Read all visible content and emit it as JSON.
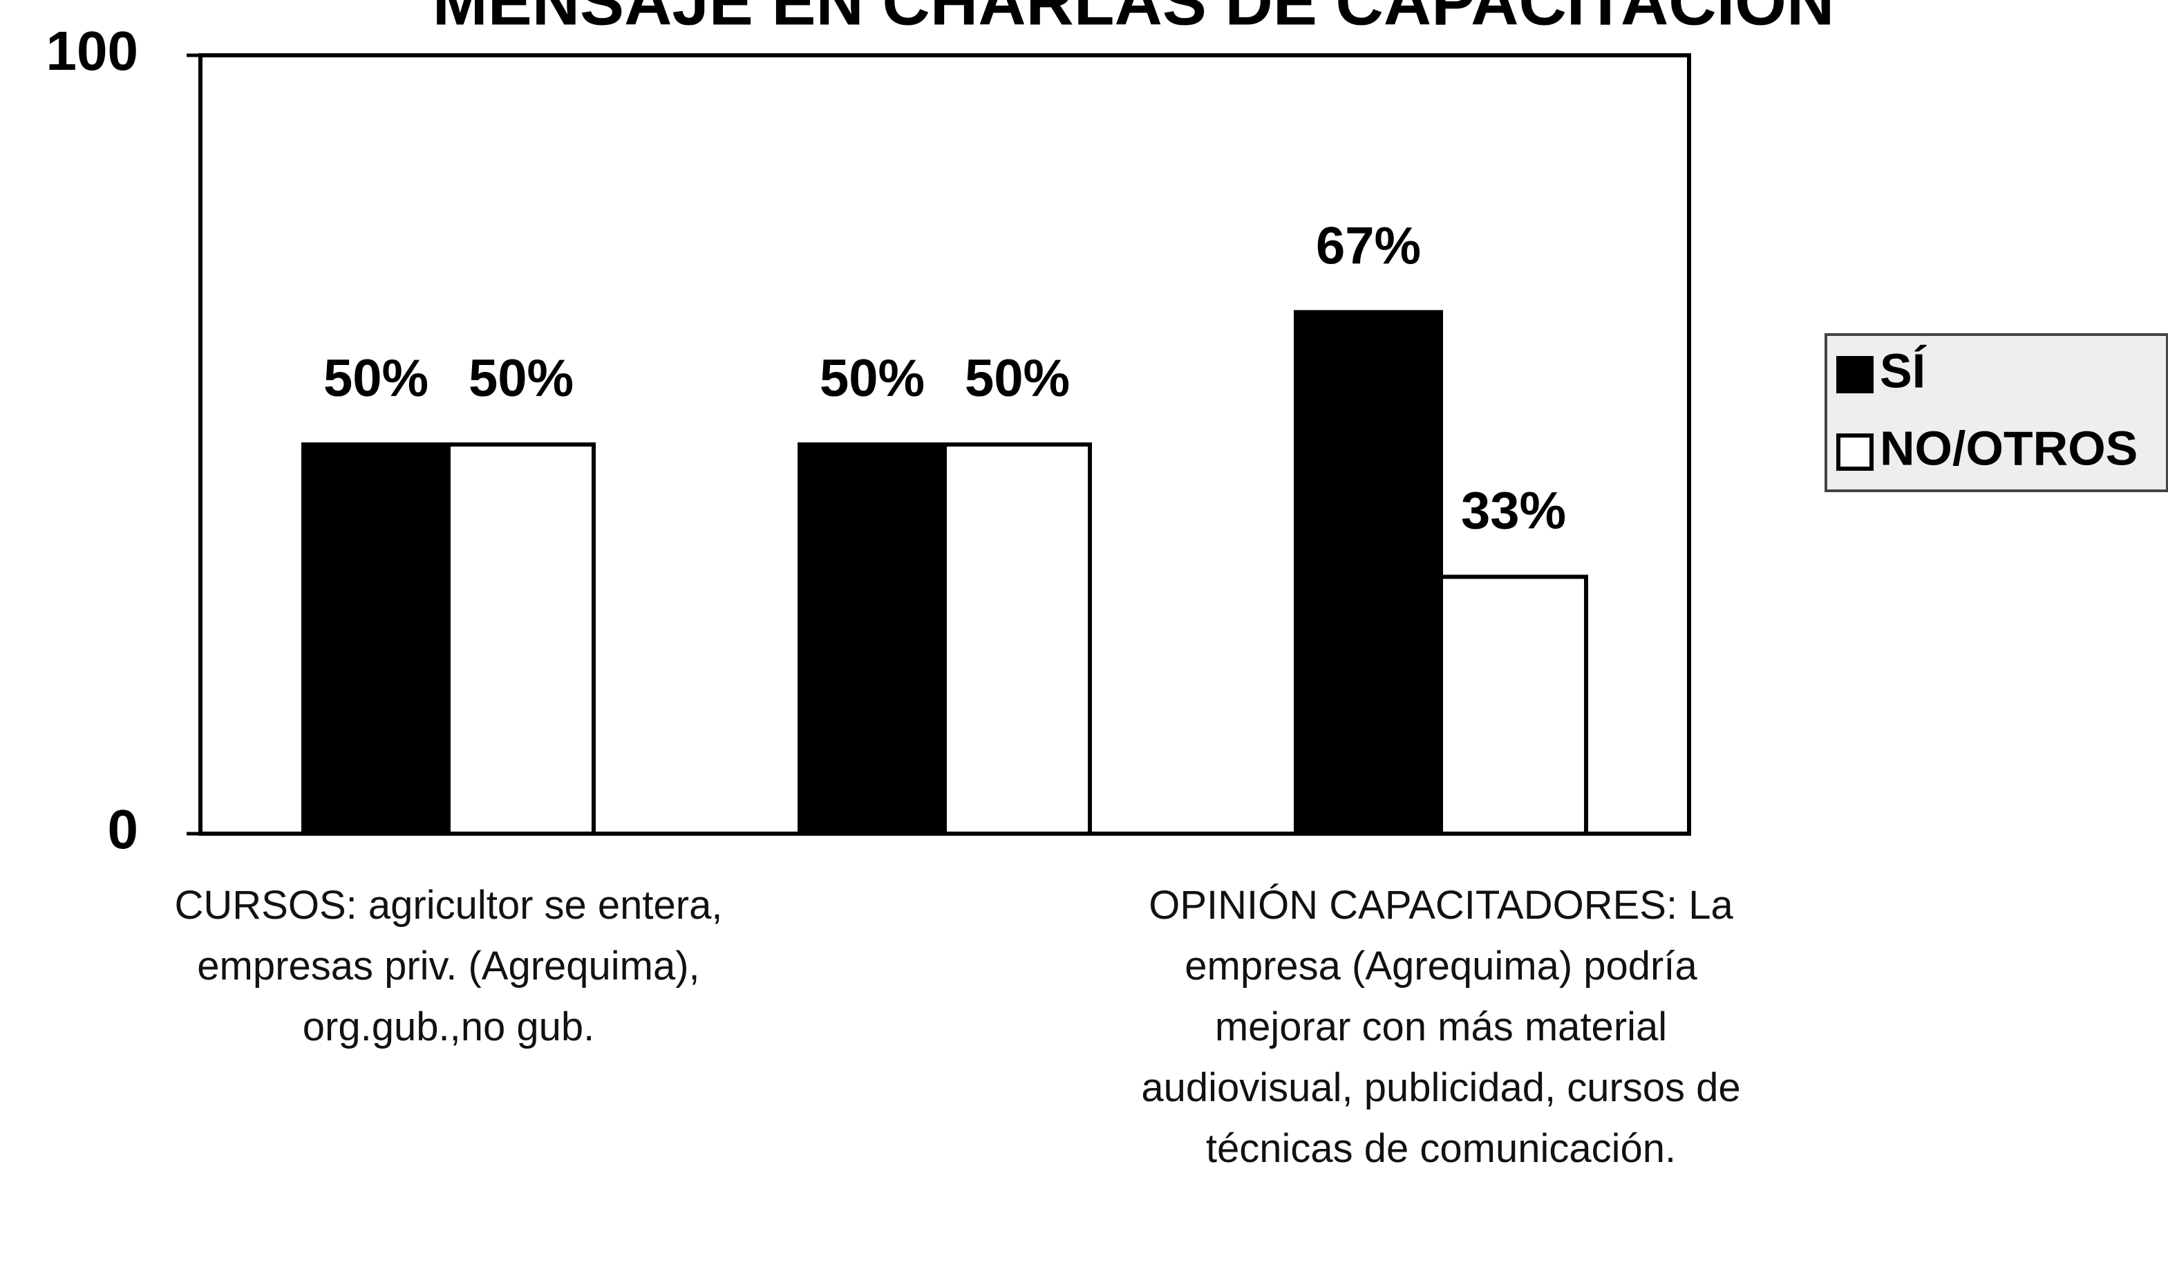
{
  "chart_data": {
    "type": "bar",
    "title": "MENSAJE EN CHARLAS DE CAPACITACIÓN",
    "categories": [
      "CURSOS: agricultor se entera, empresas priv. (Agrequima), org.gub.,no gub.",
      null,
      "OPINIÓN CAPACITADORES: La empresa (Agrequima) podría mejorar con más material audiovisual, publicidad, cursos de técnicas de comunicación."
    ],
    "series": [
      {
        "name": "SÍ",
        "color": "#000000",
        "values": [
          50,
          50,
          67
        ],
        "value_labels": [
          "50%",
          "50%",
          "67%"
        ]
      },
      {
        "name": "NO/OTROS",
        "color": "#ffffff",
        "values": [
          50,
          50,
          33
        ],
        "value_labels": [
          "50%",
          "50%",
          "33%"
        ]
      }
    ],
    "ylim": [
      0,
      100
    ],
    "yticks": [
      0,
      100
    ],
    "grid": false,
    "legend": "right"
  }
}
